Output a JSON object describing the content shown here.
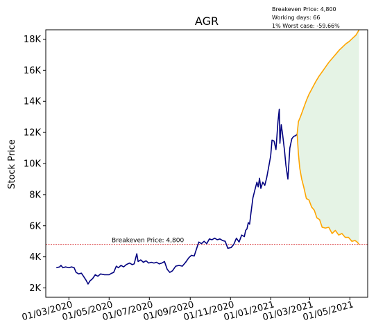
{
  "chart_data": {
    "type": "line",
    "title": "AGR",
    "ylabel": "Stock Price",
    "xlabel": "",
    "ylim": [
      1400,
      18600
    ],
    "xlim": [
      "2020-01-26",
      "2021-05-28"
    ],
    "grid": false,
    "y_ticks": [
      {
        "value": 2000,
        "label": "2K"
      },
      {
        "value": 4000,
        "label": "4K"
      },
      {
        "value": 6000,
        "label": "6K"
      },
      {
        "value": 8000,
        "label": "8K"
      },
      {
        "value": 10000,
        "label": "10K"
      },
      {
        "value": 12000,
        "label": "12K"
      },
      {
        "value": 14000,
        "label": "14K"
      },
      {
        "value": 16000,
        "label": "16K"
      },
      {
        "value": 18000,
        "label": "18K"
      }
    ],
    "x_ticks": [
      {
        "value": "2020-03-01",
        "label": "01/03/2020"
      },
      {
        "value": "2020-05-01",
        "label": "01/05/2020"
      },
      {
        "value": "2020-07-01",
        "label": "01/07/2020"
      },
      {
        "value": "2020-09-01",
        "label": "01/09/2020"
      },
      {
        "value": "2020-11-01",
        "label": "01/11/2020"
      },
      {
        "value": "2021-01-01",
        "label": "01/01/2021"
      },
      {
        "value": "2021-03-01",
        "label": "01/03/2021"
      },
      {
        "value": "2021-05-01",
        "label": "01/05/2021"
      }
    ],
    "breakeven": {
      "value": 4800,
      "label": "Breakeven Price: 4,800",
      "color": "#d62728"
    },
    "info_lines": [
      "Breakeven Price: 4,800",
      "Working days: 66",
      "1% Worst case: -59.66%"
    ],
    "series": [
      {
        "color": "#00007f",
        "points": [
          [
            "2020-02-11",
            3300
          ],
          [
            "2020-02-16",
            3350
          ],
          [
            "2020-02-18",
            3450
          ],
          [
            "2020-02-21",
            3300
          ],
          [
            "2020-02-25",
            3350
          ],
          [
            "2020-03-01",
            3300
          ],
          [
            "2020-03-05",
            3350
          ],
          [
            "2020-03-09",
            3300
          ],
          [
            "2020-03-12",
            3000
          ],
          [
            "2020-03-16",
            2900
          ],
          [
            "2020-03-20",
            2950
          ],
          [
            "2020-03-24",
            2700
          ],
          [
            "2020-03-27",
            2500
          ],
          [
            "2020-03-30",
            2250
          ],
          [
            "2020-04-02",
            2450
          ],
          [
            "2020-04-06",
            2600
          ],
          [
            "2020-04-10",
            2850
          ],
          [
            "2020-04-14",
            2750
          ],
          [
            "2020-04-18",
            2900
          ],
          [
            "2020-04-24",
            2850
          ],
          [
            "2020-05-01",
            2850
          ],
          [
            "2020-05-05",
            2950
          ],
          [
            "2020-05-08",
            3000
          ],
          [
            "2020-05-12",
            3400
          ],
          [
            "2020-05-15",
            3300
          ],
          [
            "2020-05-19",
            3450
          ],
          [
            "2020-05-23",
            3350
          ],
          [
            "2020-05-27",
            3500
          ],
          [
            "2020-06-01",
            3600
          ],
          [
            "2020-06-05",
            3500
          ],
          [
            "2020-06-08",
            3550
          ],
          [
            "2020-06-12",
            4200
          ],
          [
            "2020-06-14",
            3700
          ],
          [
            "2020-06-18",
            3800
          ],
          [
            "2020-06-22",
            3650
          ],
          [
            "2020-06-26",
            3750
          ],
          [
            "2020-06-30",
            3600
          ],
          [
            "2020-07-04",
            3650
          ],
          [
            "2020-07-08",
            3600
          ],
          [
            "2020-07-12",
            3650
          ],
          [
            "2020-07-16",
            3550
          ],
          [
            "2020-07-20",
            3600
          ],
          [
            "2020-07-24",
            3700
          ],
          [
            "2020-07-28",
            3200
          ],
          [
            "2020-08-01",
            3000
          ],
          [
            "2020-08-05",
            3100
          ],
          [
            "2020-08-10",
            3400
          ],
          [
            "2020-08-15",
            3450
          ],
          [
            "2020-08-20",
            3400
          ],
          [
            "2020-08-25",
            3650
          ],
          [
            "2020-08-30",
            3950
          ],
          [
            "2020-09-03",
            4100
          ],
          [
            "2020-09-07",
            4050
          ],
          [
            "2020-09-10",
            4450
          ],
          [
            "2020-09-14",
            4950
          ],
          [
            "2020-09-18",
            4850
          ],
          [
            "2020-09-22",
            5000
          ],
          [
            "2020-09-26",
            4850
          ],
          [
            "2020-09-30",
            5150
          ],
          [
            "2020-10-04",
            5100
          ],
          [
            "2020-10-08",
            5200
          ],
          [
            "2020-10-12",
            5100
          ],
          [
            "2020-10-16",
            5150
          ],
          [
            "2020-10-20",
            5050
          ],
          [
            "2020-10-24",
            5000
          ],
          [
            "2020-10-28",
            4550
          ],
          [
            "2020-11-02",
            4600
          ],
          [
            "2020-11-06",
            4800
          ],
          [
            "2020-11-10",
            5200
          ],
          [
            "2020-11-14",
            4950
          ],
          [
            "2020-11-18",
            5400
          ],
          [
            "2020-11-22",
            5300
          ],
          [
            "2020-11-24",
            5700
          ],
          [
            "2020-11-26",
            5800
          ],
          [
            "2020-11-28",
            6200
          ],
          [
            "2020-11-30",
            6100
          ],
          [
            "2020-12-02",
            6800
          ],
          [
            "2020-12-05",
            7800
          ],
          [
            "2020-12-08",
            8300
          ],
          [
            "2020-12-11",
            8800
          ],
          [
            "2020-12-13",
            8500
          ],
          [
            "2020-12-15",
            9050
          ],
          [
            "2020-12-17",
            8400
          ],
          [
            "2020-12-20",
            8800
          ],
          [
            "2020-12-23",
            8600
          ],
          [
            "2020-12-26",
            9100
          ],
          [
            "2020-12-29",
            9800
          ],
          [
            "2021-01-01",
            10500
          ],
          [
            "2021-01-03",
            11500
          ],
          [
            "2021-01-06",
            11450
          ],
          [
            "2021-01-09",
            10900
          ],
          [
            "2021-01-12",
            12700
          ],
          [
            "2021-01-14",
            13500
          ],
          [
            "2021-01-15",
            11300
          ],
          [
            "2021-01-17",
            12500
          ],
          [
            "2021-01-19",
            11900
          ],
          [
            "2021-01-22",
            10800
          ],
          [
            "2021-01-24",
            9900
          ],
          [
            "2021-01-27",
            9000
          ],
          [
            "2021-01-30",
            11000
          ],
          [
            "2021-02-02",
            11600
          ],
          [
            "2021-02-05",
            11750
          ],
          [
            "2021-02-08",
            11800
          ],
          [
            "2021-02-10",
            11900
          ]
        ]
      },
      {
        "color": "#ffa500",
        "points": [
          [
            "2021-02-10",
            11900
          ],
          [
            "2021-02-12",
            12700
          ],
          [
            "2021-02-15",
            13000
          ],
          [
            "2021-02-18",
            13350
          ],
          [
            "2021-02-21",
            13700
          ],
          [
            "2021-02-24",
            14050
          ],
          [
            "2021-02-28",
            14450
          ],
          [
            "2021-03-05",
            14850
          ],
          [
            "2021-03-10",
            15250
          ],
          [
            "2021-03-15",
            15600
          ],
          [
            "2021-03-20",
            15900
          ],
          [
            "2021-03-25",
            16200
          ],
          [
            "2021-03-30",
            16500
          ],
          [
            "2021-04-05",
            16800
          ],
          [
            "2021-04-10",
            17050
          ],
          [
            "2021-04-15",
            17300
          ],
          [
            "2021-04-20",
            17500
          ],
          [
            "2021-04-25",
            17700
          ],
          [
            "2021-04-30",
            17850
          ],
          [
            "2021-05-05",
            18050
          ],
          [
            "2021-05-10",
            18250
          ],
          [
            "2021-05-13",
            18450
          ],
          [
            "2021-05-15",
            18600
          ]
        ]
      },
      {
        "color": "#ffa500",
        "points": [
          [
            "2021-02-10",
            11900
          ],
          [
            "2021-02-12",
            10600
          ],
          [
            "2021-02-14",
            9700
          ],
          [
            "2021-02-17",
            9000
          ],
          [
            "2021-02-20",
            8500
          ],
          [
            "2021-02-24",
            7750
          ],
          [
            "2021-02-28",
            7650
          ],
          [
            "2021-03-04",
            7200
          ],
          [
            "2021-03-08",
            7000
          ],
          [
            "2021-03-12",
            6500
          ],
          [
            "2021-03-16",
            6400
          ],
          [
            "2021-03-20",
            5900
          ],
          [
            "2021-03-25",
            5850
          ],
          [
            "2021-03-30",
            5900
          ],
          [
            "2021-04-04",
            5500
          ],
          [
            "2021-04-09",
            5700
          ],
          [
            "2021-04-14",
            5400
          ],
          [
            "2021-04-19",
            5500
          ],
          [
            "2021-04-24",
            5250
          ],
          [
            "2021-04-29",
            5250
          ],
          [
            "2021-05-04",
            5000
          ],
          [
            "2021-05-09",
            5050
          ],
          [
            "2021-05-12",
            4950
          ],
          [
            "2021-05-15",
            4800
          ]
        ]
      }
    ],
    "fill_color": "#2ca02c",
    "fill_opacity": 0.12
  }
}
